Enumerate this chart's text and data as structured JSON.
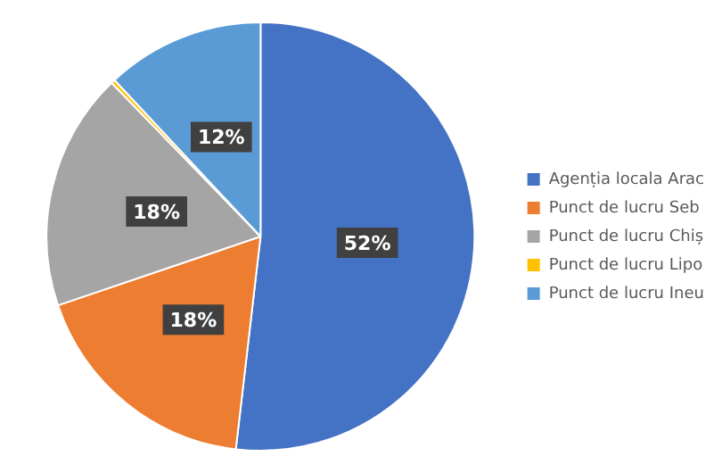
{
  "chart_data": {
    "type": "pie",
    "categories": [
      "Agenția locala Arac",
      "Punct de lucru Seb",
      "Punct de lucru Chiș",
      "Punct de lucru Lipo",
      "Punct de lucru Ineu"
    ],
    "values": [
      52,
      18,
      18,
      0.3,
      12
    ],
    "value_labels": [
      "52%",
      "18%",
      "18%",
      null,
      "12%"
    ],
    "colors": [
      "#4472c4",
      "#ed7d31",
      "#a5a5a5",
      "#ffc000",
      "#5b9bd5"
    ],
    "legend": "right"
  }
}
